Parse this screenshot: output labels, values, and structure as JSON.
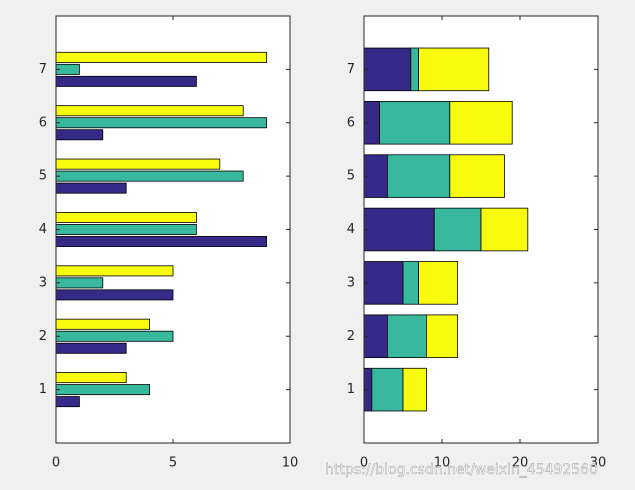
{
  "chart_data": [
    {
      "type": "barh",
      "stacked": false,
      "y": [
        1,
        2,
        3,
        4,
        5,
        6,
        7
      ],
      "series": [
        {
          "color": "#352a87",
          "values": [
            1,
            3,
            5,
            9,
            3,
            2,
            6
          ]
        },
        {
          "color": "#38b99e",
          "values": [
            4,
            5,
            2,
            6,
            8,
            9,
            1
          ]
        },
        {
          "color": "#f9fb0e",
          "values": [
            3,
            4,
            5,
            6,
            7,
            8,
            9
          ]
        }
      ],
      "xlim": [
        0,
        10
      ],
      "xticks": [
        0,
        5,
        10
      ],
      "ylim": [
        0,
        8
      ],
      "yticks": [
        1,
        2,
        3,
        4,
        5,
        6,
        7
      ]
    },
    {
      "type": "barh",
      "stacked": true,
      "y": [
        1,
        2,
        3,
        4,
        5,
        6,
        7
      ],
      "series": [
        {
          "color": "#352a87",
          "values": [
            1,
            3,
            5,
            9,
            3,
            2,
            6
          ]
        },
        {
          "color": "#38b99e",
          "values": [
            4,
            5,
            2,
            6,
            8,
            9,
            1
          ]
        },
        {
          "color": "#f9fb0e",
          "values": [
            3,
            4,
            5,
            6,
            7,
            8,
            9
          ]
        }
      ],
      "xlim": [
        0,
        30
      ],
      "xticks": [
        0,
        10,
        20,
        30
      ],
      "ylim": [
        0,
        8
      ],
      "yticks": [
        1,
        2,
        3,
        4,
        5,
        6,
        7
      ]
    }
  ],
  "watermark": "https://blog.csdn.net/weixin_45492560"
}
